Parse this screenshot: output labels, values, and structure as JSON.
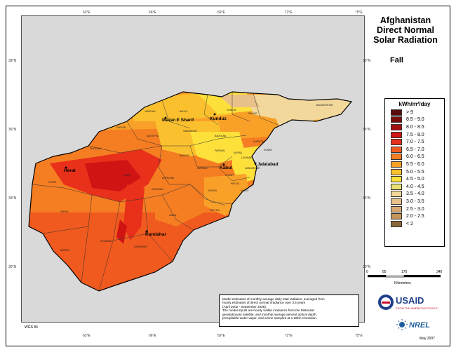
{
  "title": [
    "Afghanistan",
    "Direct Normal",
    "Solar Radiation"
  ],
  "season": "Fall",
  "legend": {
    "title": "kWh/m²/day",
    "classes": [
      {
        "label": "> 9",
        "color": "#5a0a0a"
      },
      {
        "label": "8.5 - 9.0",
        "color": "#7a0c0c"
      },
      {
        "label": "8.0 - 8.5",
        "color": "#a50f0f"
      },
      {
        "label": "7.5 - 8.0",
        "color": "#d01414"
      },
      {
        "label": "7.0 - 7.5",
        "color": "#e8301a"
      },
      {
        "label": "6.5 - 7.0",
        "color": "#f05a1e"
      },
      {
        "label": "6.0 - 6.5",
        "color": "#f57d22"
      },
      {
        "label": "5.5 - 6.0",
        "color": "#f9a028"
      },
      {
        "label": "5.0 - 5.5",
        "color": "#fbc02e"
      },
      {
        "label": "4.5 - 5.0",
        "color": "#fde03a"
      },
      {
        "label": "4.0 - 4.5",
        "color": "#e8e070"
      },
      {
        "label": "3.5 - 4.0",
        "color": "#f2d89a"
      },
      {
        "label": "3.0 - 3.5",
        "color": "#e8c08a"
      },
      {
        "label": "2.5 - 3.0",
        "color": "#d9a870"
      },
      {
        "label": "2.0 - 2.5",
        "color": "#c39558"
      },
      {
        "label": "< 2",
        "color": "#8a6a3a"
      }
    ]
  },
  "longitude_ticks": [
    "63°E",
    "66°E",
    "69°E",
    "72°E",
    "75°E"
  ],
  "latitude_ticks": [
    "39°N",
    "36°N",
    "33°N",
    "30°N"
  ],
  "cities": [
    "Herat",
    "Mazar-E Sharif",
    "Kunduz",
    "Kabul",
    "Jalalabad",
    "Kandahar"
  ],
  "provinces": [
    "BADAKHSHAN",
    "JAWZJAN",
    "BALKH",
    "KUNDUZ",
    "TAKHAR",
    "FARYAB",
    "SAMANGAN",
    "BAGHLAN",
    "SAR-E POL",
    "BADGHIS",
    "BAMYAN",
    "PARWAN",
    "KAPISA",
    "LAGHMAN",
    "KUNAR",
    "NURISTAN",
    "WARDAK",
    "LOGAR",
    "NANGARHAR",
    "PAKTIA",
    "KHOST",
    "GHAZNI",
    "PAKTIKA",
    "ZABUL",
    "URUZGAN",
    "GHOR",
    "DAYKUNDI",
    "FARAH",
    "NIMROZ",
    "HELMAND",
    "KANDAHAR",
    "HERAT"
  ],
  "scale": {
    "labels": [
      "0",
      "85",
      "170",
      "340"
    ],
    "unit": "Kilometers"
  },
  "notes": [
    "Model estimates of monthly average daily total radiation, averaged from",
    "hourly estimates of direct normal irradiance over 3.5 years",
    "(April 2002 - September 2005).",
    "The model inputs are hourly visible irradiance from the Meteosat",
    "geostationary satellite, and monthly average aerosol optical depth,",
    "precipitable water vapor, and ozone sampled at a 10km resolution."
  ],
  "datum": "WGS 84",
  "date": "May 2007",
  "logos": {
    "usaid": "USAID",
    "usaid_tagline": "FROM THE AMERICAN PEOPLE",
    "nrel": "NREL"
  }
}
